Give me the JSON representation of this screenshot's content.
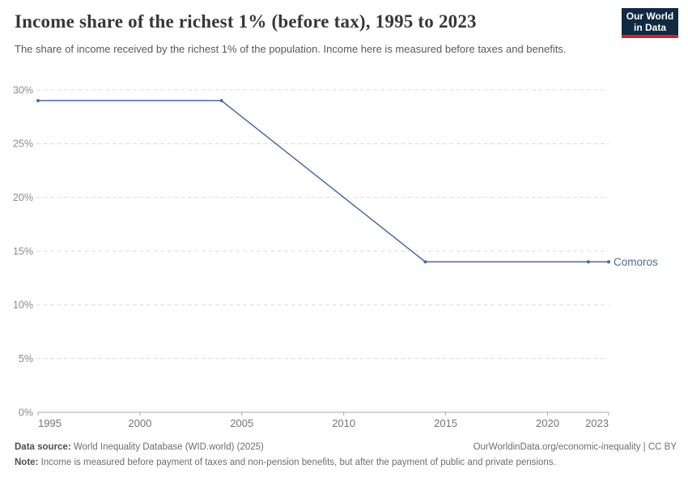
{
  "header": {
    "title": "Income share of the richest 1% (before tax), 1995 to 2023",
    "subtitle": "The share of income received by the richest 1% of the population. Income here is measured before taxes and benefits.",
    "logo": {
      "line1": "Our World",
      "line2": "in Data",
      "bg_color": "#102A42",
      "stripe_color": "#CC2428"
    }
  },
  "chart_data": {
    "type": "line",
    "title": "Income share of the richest 1% (before tax), 1995 to 2023",
    "series": [
      {
        "name": "Comoros",
        "color": "#4C6A9C",
        "points": [
          [
            1995,
            29
          ],
          [
            2004,
            29
          ],
          [
            2014,
            14
          ],
          [
            2022,
            14
          ],
          [
            2023,
            14
          ]
        ]
      }
    ],
    "xlim": [
      1995,
      2023
    ],
    "ylim": [
      0,
      30
    ],
    "x_ticks": [
      1995,
      2000,
      2005,
      2010,
      2015,
      2020,
      2023
    ],
    "y_ticks": [
      0,
      5,
      10,
      15,
      20,
      25,
      30
    ],
    "y_tick_suffix": "%",
    "grid": "horizontal-dashed",
    "legend_position": "end-of-line-label",
    "colors": {
      "gridline": "#dcdcdc",
      "axis": "#a8a8a8",
      "y_tick_label": "#8b8b8b",
      "x_tick_label": "#757575"
    }
  },
  "footer": {
    "source_label": "Data source:",
    "source_text": " World Inequality Database (WID.world) (2025)",
    "attribution": "OurWorldinData.org/economic-inequality | CC BY",
    "note_label": "Note:",
    "note_text": " Income is measured before payment of taxes and non-pension benefits, but after the payment of public and private pensions."
  }
}
